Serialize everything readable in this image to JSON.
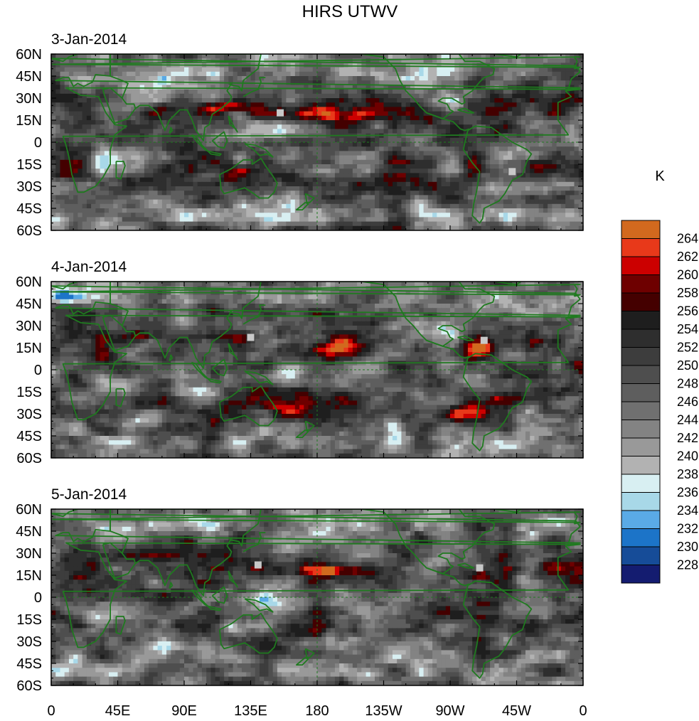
{
  "title": "HIRS UTWV",
  "units": "K",
  "panels": [
    {
      "date": "3-Jan-2014",
      "seed": 3
    },
    {
      "date": "4-Jan-2014",
      "seed": 4
    },
    {
      "date": "5-Jan-2014",
      "seed": 5
    }
  ],
  "lat_labels": [
    "60N",
    "45N",
    "30N",
    "15N",
    "0",
    "15S",
    "30S",
    "45S",
    "60S"
  ],
  "lon_labels": [
    "0",
    "45E",
    "90E",
    "135E",
    "180",
    "135W",
    "90W",
    "45W",
    "0"
  ],
  "colorbar": {
    "labels": [
      "264",
      "262",
      "260",
      "258",
      "256",
      "254",
      "252",
      "250",
      "248",
      "246",
      "244",
      "242",
      "240",
      "238",
      "236",
      "234",
      "232",
      "230",
      "228"
    ],
    "colors": [
      "#d2691e",
      "#e8391a",
      "#cc0000",
      "#6e0000",
      "#440000",
      "#1e1e1e",
      "#2e2e2e",
      "#3d3d3d",
      "#4e4e4e",
      "#5e5e5e",
      "#707070",
      "#838383",
      "#999999",
      "#b2b2b2",
      "#d8eff2",
      "#a8d8e8",
      "#5aaae6",
      "#1c74c8",
      "#164c98",
      "#141c70"
    ]
  },
  "map_settings": {
    "lon_range": [
      0,
      360
    ],
    "lat_range": [
      -60,
      60
    ],
    "coastline_color": "#1f7a1f",
    "missing_color": "#c8c8c8"
  }
}
